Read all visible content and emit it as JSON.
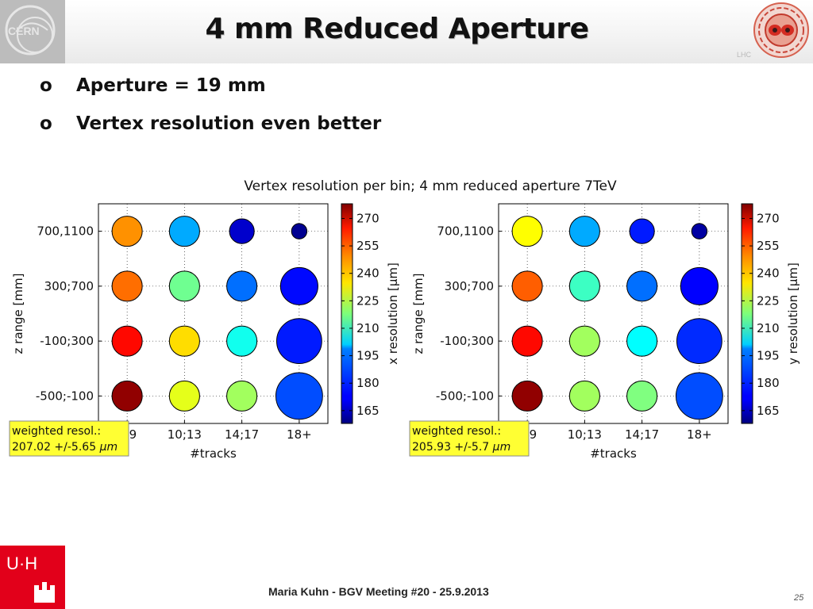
{
  "slide": {
    "title": "4 mm Reduced Aperture",
    "bullets": [
      {
        "marker": "o",
        "text": "Aperture = 19 mm"
      },
      {
        "marker": "o",
        "text": "Vertex resolution even better"
      }
    ],
    "footer": "Maria Kuhn - BGV Meeting #20 - 25.9.2013",
    "page_number": "25",
    "logos": {
      "top_left": "cern-logo",
      "top_right": "lhc-logo",
      "bottom_left": "uhh-logo",
      "lhc_text": "LHC"
    }
  },
  "chart_data": [
    {
      "type": "scatter",
      "suptitle": "Vertex resolution per bin; 4 mm reduced aperture 7TeV",
      "xlabel": "#tracks",
      "ylabel": "z range [mm]",
      "x_categories": [
        "5;9",
        "10;13",
        "14;17",
        "18+"
      ],
      "y_categories": [
        "-500;-100",
        "-100;300",
        "300;700",
        "700,1100"
      ],
      "colorbar": {
        "label": "x resolution [μm]",
        "ticks": [
          165,
          180,
          195,
          210,
          225,
          240,
          255,
          270
        ],
        "range": [
          158,
          278
        ]
      },
      "points": [
        {
          "x": "5;9",
          "y": "700,1100",
          "value": 246,
          "size": 0.55
        },
        {
          "x": "10;13",
          "y": "700,1100",
          "value": 193,
          "size": 0.55
        },
        {
          "x": "14;17",
          "y": "700,1100",
          "value": 167,
          "size": 0.45
        },
        {
          "x": "18+",
          "y": "700,1100",
          "value": 160,
          "size": 0.28
        },
        {
          "x": "5;9",
          "y": "300;700",
          "value": 250,
          "size": 0.55
        },
        {
          "x": "10;13",
          "y": "300;700",
          "value": 216,
          "size": 0.55
        },
        {
          "x": "14;17",
          "y": "300;700",
          "value": 186,
          "size": 0.55
        },
        {
          "x": "18+",
          "y": "300;700",
          "value": 174,
          "size": 0.68
        },
        {
          "x": "5;9",
          "y": "-100;300",
          "value": 262,
          "size": 0.55
        },
        {
          "x": "10;13",
          "y": "-100;300",
          "value": 237,
          "size": 0.55
        },
        {
          "x": "14;17",
          "y": "-100;300",
          "value": 205,
          "size": 0.55
        },
        {
          "x": "18+",
          "y": "-100;300",
          "value": 176,
          "size": 0.82
        },
        {
          "x": "5;9",
          "y": "-500;-100",
          "value": 276,
          "size": 0.55
        },
        {
          "x": "10;13",
          "y": "-500;-100",
          "value": 230,
          "size": 0.55
        },
        {
          "x": "14;17",
          "y": "-500;-100",
          "value": 222,
          "size": 0.55
        },
        {
          "x": "18+",
          "y": "-500;-100",
          "value": 182,
          "size": 0.85
        }
      ],
      "annotation": {
        "line1": "weighted resol.:",
        "line2": "207.02 +/-5.65",
        "unit": "μm"
      }
    },
    {
      "type": "scatter",
      "xlabel": "#tracks",
      "ylabel": "z range [mm]",
      "x_categories": [
        "5;9",
        "10;13",
        "14;17",
        "18+"
      ],
      "y_categories": [
        "-500;-100",
        "-100;300",
        "300;700",
        "700,1100"
      ],
      "colorbar": {
        "label": "y resolution [μm]",
        "ticks": [
          165,
          180,
          195,
          210,
          225,
          240,
          255,
          270
        ],
        "range": [
          158,
          278
        ]
      },
      "points": [
        {
          "x": "5;9",
          "y": "700,1100",
          "value": 233,
          "size": 0.55
        },
        {
          "x": "10;13",
          "y": "700,1100",
          "value": 193,
          "size": 0.55
        },
        {
          "x": "14;17",
          "y": "700,1100",
          "value": 176,
          "size": 0.45
        },
        {
          "x": "18+",
          "y": "700,1100",
          "value": 162,
          "size": 0.28
        },
        {
          "x": "5;9",
          "y": "300;700",
          "value": 252,
          "size": 0.55
        },
        {
          "x": "10;13",
          "y": "300;700",
          "value": 210,
          "size": 0.55
        },
        {
          "x": "14;17",
          "y": "300;700",
          "value": 186,
          "size": 0.55
        },
        {
          "x": "18+",
          "y": "300;700",
          "value": 173,
          "size": 0.68
        },
        {
          "x": "5;9",
          "y": "-100;300",
          "value": 262,
          "size": 0.55
        },
        {
          "x": "10;13",
          "y": "-100;300",
          "value": 222,
          "size": 0.55
        },
        {
          "x": "14;17",
          "y": "-100;300",
          "value": 203,
          "size": 0.55
        },
        {
          "x": "18+",
          "y": "-100;300",
          "value": 178,
          "size": 0.82
        },
        {
          "x": "5;9",
          "y": "-500;-100",
          "value": 276,
          "size": 0.55
        },
        {
          "x": "10;13",
          "y": "-500;-100",
          "value": 222,
          "size": 0.55
        },
        {
          "x": "14;17",
          "y": "-500;-100",
          "value": 218,
          "size": 0.55
        },
        {
          "x": "18+",
          "y": "-500;-100",
          "value": 182,
          "size": 0.85
        }
      ],
      "annotation": {
        "line1": "weighted resol.:",
        "line2": "205.93 +/-5.7",
        "unit": "μm"
      }
    }
  ]
}
